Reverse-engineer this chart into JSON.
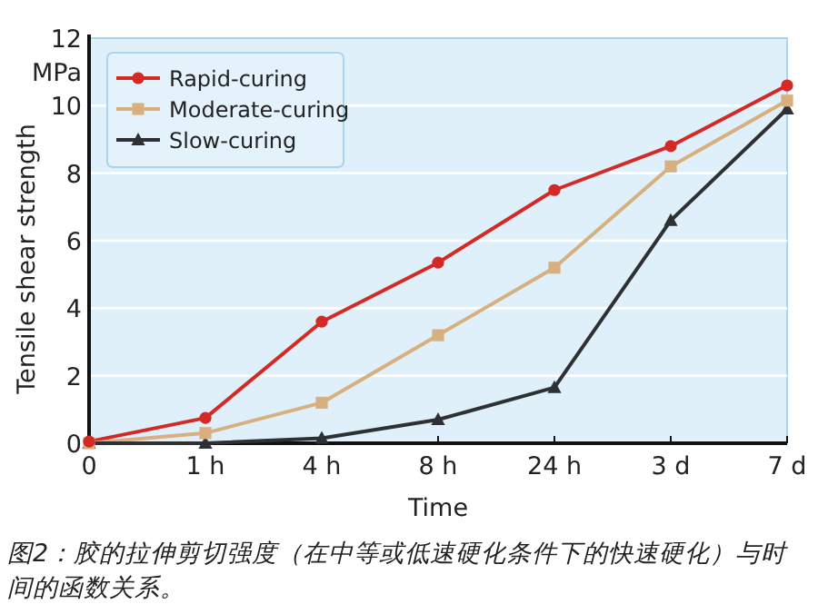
{
  "chart_data": {
    "type": "line",
    "xlabel": "Time",
    "ylabel": "Tensile shear strength",
    "categories": [
      "0",
      "1 h",
      "4 h",
      "8 h",
      "24 h",
      "3 d",
      "7 d"
    ],
    "series": [
      {
        "name": "Rapid-curing",
        "color": "#d42a25",
        "marker": "circle",
        "values": [
          0.05,
          0.75,
          3.6,
          5.35,
          7.5,
          8.8,
          10.6
        ]
      },
      {
        "name": "Moderate-curing",
        "color": "#d8b07f",
        "marker": "square",
        "values": [
          0,
          0.3,
          1.2,
          3.2,
          5.2,
          8.2,
          10.15
        ]
      },
      {
        "name": "Slow-curing",
        "color": "#2e3033",
        "marker": "triangle",
        "values": [
          0,
          0,
          0.15,
          0.7,
          1.65,
          6.6,
          9.9
        ]
      }
    ],
    "ylim": [
      0,
      12
    ],
    "yticks": [
      0,
      2,
      4,
      6,
      8,
      10,
      {
        "value": 11,
        "label": "MPa"
      },
      12
    ],
    "grid": "y",
    "legend": "top left",
    "line_style": "solid",
    "annotations": [
      "图2：胶的拉伸剪切强度（在中等或低速硬化条件下的快速硬化）与时间的函数关系。"
    ]
  }
}
